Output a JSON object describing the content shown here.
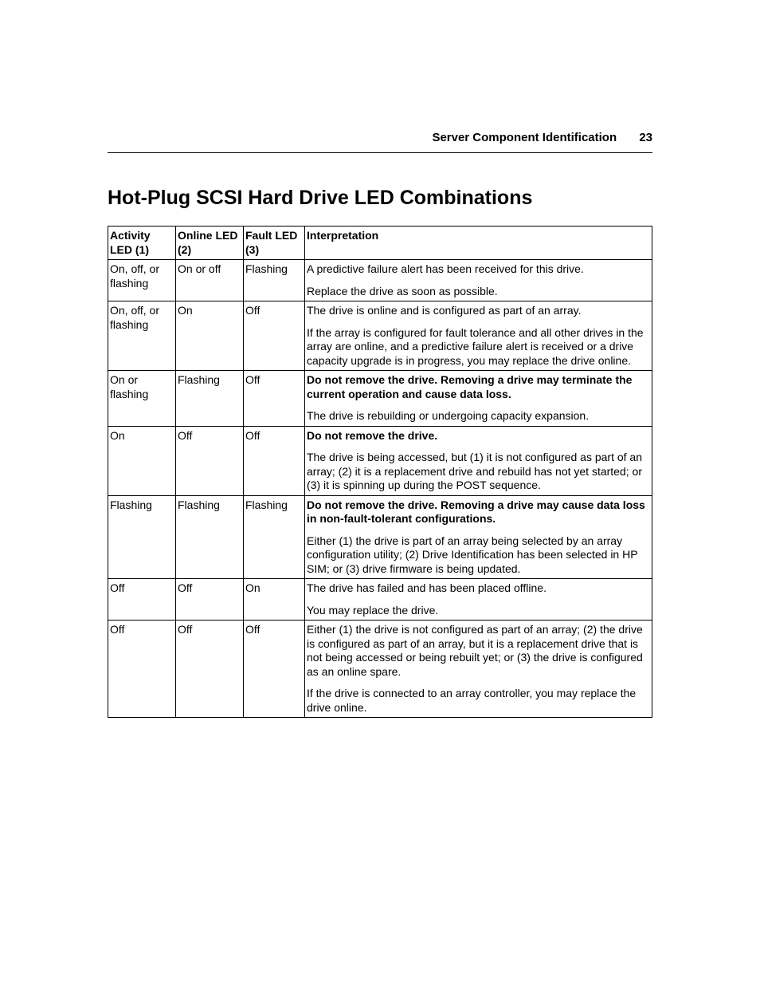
{
  "header": {
    "section": "Server Component Identification",
    "page_number": "23"
  },
  "title": "Hot-Plug SCSI Hard Drive LED Combinations",
  "columns": {
    "activity": "Activity LED (1)",
    "online": "Online LED (2)",
    "fault": "Fault LED (3)",
    "interpretation": "Interpretation"
  },
  "rows": [
    {
      "activity": "On, off, or flashing",
      "online": "On or off",
      "fault": "Flashing",
      "interp": [
        {
          "bold": false,
          "text": "A predictive failure alert has been received for this drive."
        },
        {
          "bold": false,
          "text": "Replace the drive as soon as possible."
        }
      ]
    },
    {
      "activity": "On, off, or flashing",
      "online": "On",
      "fault": "Off",
      "interp": [
        {
          "bold": false,
          "text": "The drive is online and is configured as part of an array."
        },
        {
          "bold": false,
          "text": "If the array is configured for fault tolerance and all other drives in the array are online, and a predictive failure alert is received or a drive capacity upgrade is in progress, you may replace the drive online."
        }
      ]
    },
    {
      "activity": "On or flashing",
      "online": "Flashing",
      "fault": "Off",
      "interp": [
        {
          "bold": true,
          "text": "Do not remove the drive. Removing a drive may terminate the current operation and cause data loss."
        },
        {
          "bold": false,
          "text": "The drive is rebuilding or undergoing capacity expansion."
        }
      ]
    },
    {
      "activity": "On",
      "online": "Off",
      "fault": "Off",
      "interp": [
        {
          "bold": true,
          "text": "Do not remove the drive."
        },
        {
          "bold": false,
          "text": "The drive is being accessed, but (1) it is not configured as part of an array; (2) it is a replacement drive and rebuild has not yet started; or (3) it is spinning up during the POST sequence."
        }
      ]
    },
    {
      "activity": "Flashing",
      "online": "Flashing",
      "fault": "Flashing",
      "interp": [
        {
          "bold": true,
          "text": "Do not remove the drive. Removing a drive may cause data loss in non-fault-tolerant configurations."
        },
        {
          "bold": false,
          "text": "Either (1) the drive is part of an array being selected by an array configuration utility; (2) Drive Identification has been selected in HP SIM; or (3) drive firmware is being updated."
        }
      ]
    },
    {
      "activity": "Off",
      "online": "Off",
      "fault": "On",
      "interp": [
        {
          "bold": false,
          "text": "The drive has failed and has been placed offline."
        },
        {
          "bold": false,
          "text": "You may replace the drive."
        }
      ]
    },
    {
      "activity": "Off",
      "online": "Off",
      "fault": "Off",
      "interp": [
        {
          "bold": false,
          "text": "Either (1) the drive is not configured as part of an array; (2) the drive is configured as part of an array, but it is a replacement drive that is not being accessed or being rebuilt yet; or (3) the drive is configured as an online spare."
        },
        {
          "bold": false,
          "text": "If the drive is connected to an array controller, you may replace the drive online."
        }
      ]
    }
  ]
}
